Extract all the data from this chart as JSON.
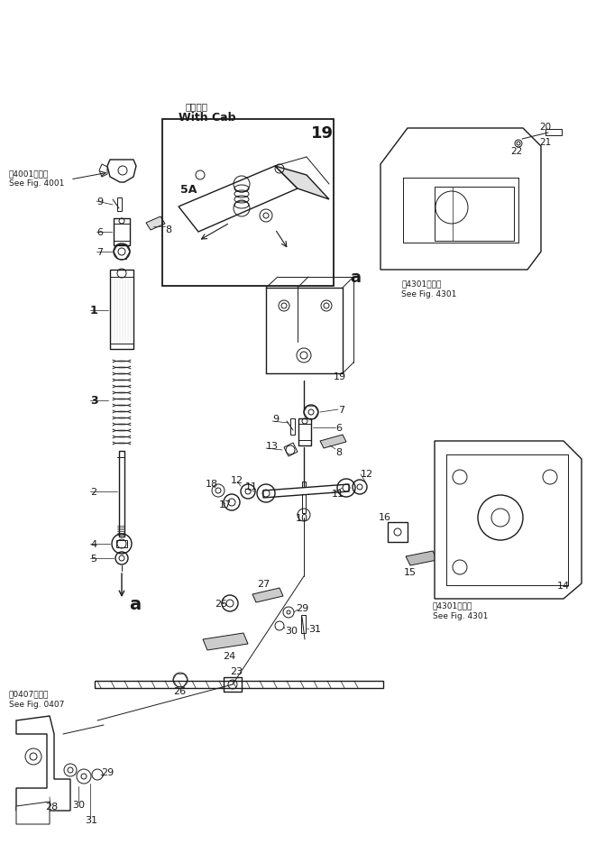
{
  "bg_color": "#ffffff",
  "line_color": "#1a1a1a",
  "fig_width": 6.71,
  "fig_height": 9.37,
  "labels": {
    "with_cab_jp": "キャブ付",
    "with_cab_en": "With Cab",
    "see_fig_4001_jp": "第4001図参照",
    "see_fig_4001_en": "See Fig. 4001",
    "see_fig_4301_jp1": "第4301図参照",
    "see_fig_4301_en1": "See Fig. 4301",
    "see_fig_4301_jp2": "第4301図参照",
    "see_fig_4301_en2": "See Fig. 4301",
    "see_fig_0407_jp": "第0407図参照",
    "see_fig_0407_en": "See Fig. 0407"
  }
}
